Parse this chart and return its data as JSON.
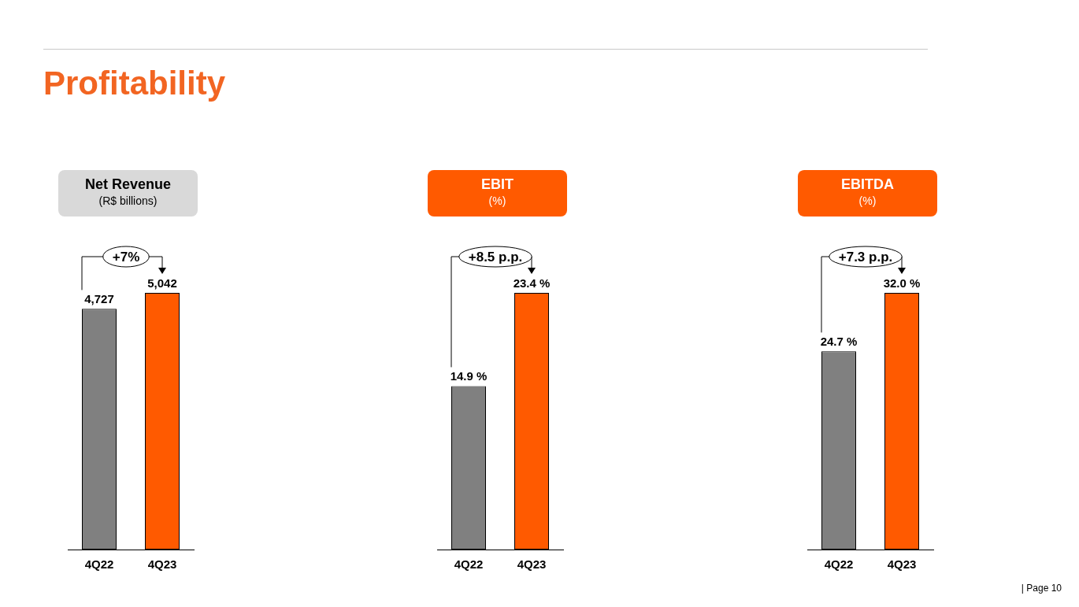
{
  "chart_data": [
    {
      "type": "bar",
      "title": "Net Revenue",
      "subtitle": "(R$ billions)",
      "categories": [
        "4Q22",
        "4Q23"
      ],
      "values": [
        4727,
        5042
      ],
      "colors": [
        "#808080",
        "#ff5a00"
      ],
      "value_labels": [
        "4,727",
        "5,042"
      ],
      "annotations": [
        "+7%",
        "Profitability"
      ]
    },
    {
      "type": "bar",
      "title": "EBIT",
      "subtitle": "(%)",
      "categories": [
        "4Q22",
        "4Q23"
      ],
      "values": [
        14.9,
        23.4
      ],
      "colors": [
        "#808080",
        "#ff5a00"
      ],
      "value_labels": [
        "14.9 %",
        "23.4 %"
      ],
      "annotations": [
        "+8.5 p.p."
      ]
    },
    {
      "type": "bar",
      "title": "EBITDA",
      "subtitle": "(%)",
      "categories": [
        "4Q22",
        "4Q23"
      ],
      "values": [
        24.7,
        32.0
      ],
      "colors": [
        "#808080",
        "#ff5a00"
      ],
      "value_labels": [
        "24.7 %",
        "32.0 %"
      ],
      "annotations": [
        "+7.3 p.p.",
        "| Page 10"
      ]
    }
  ]
}
